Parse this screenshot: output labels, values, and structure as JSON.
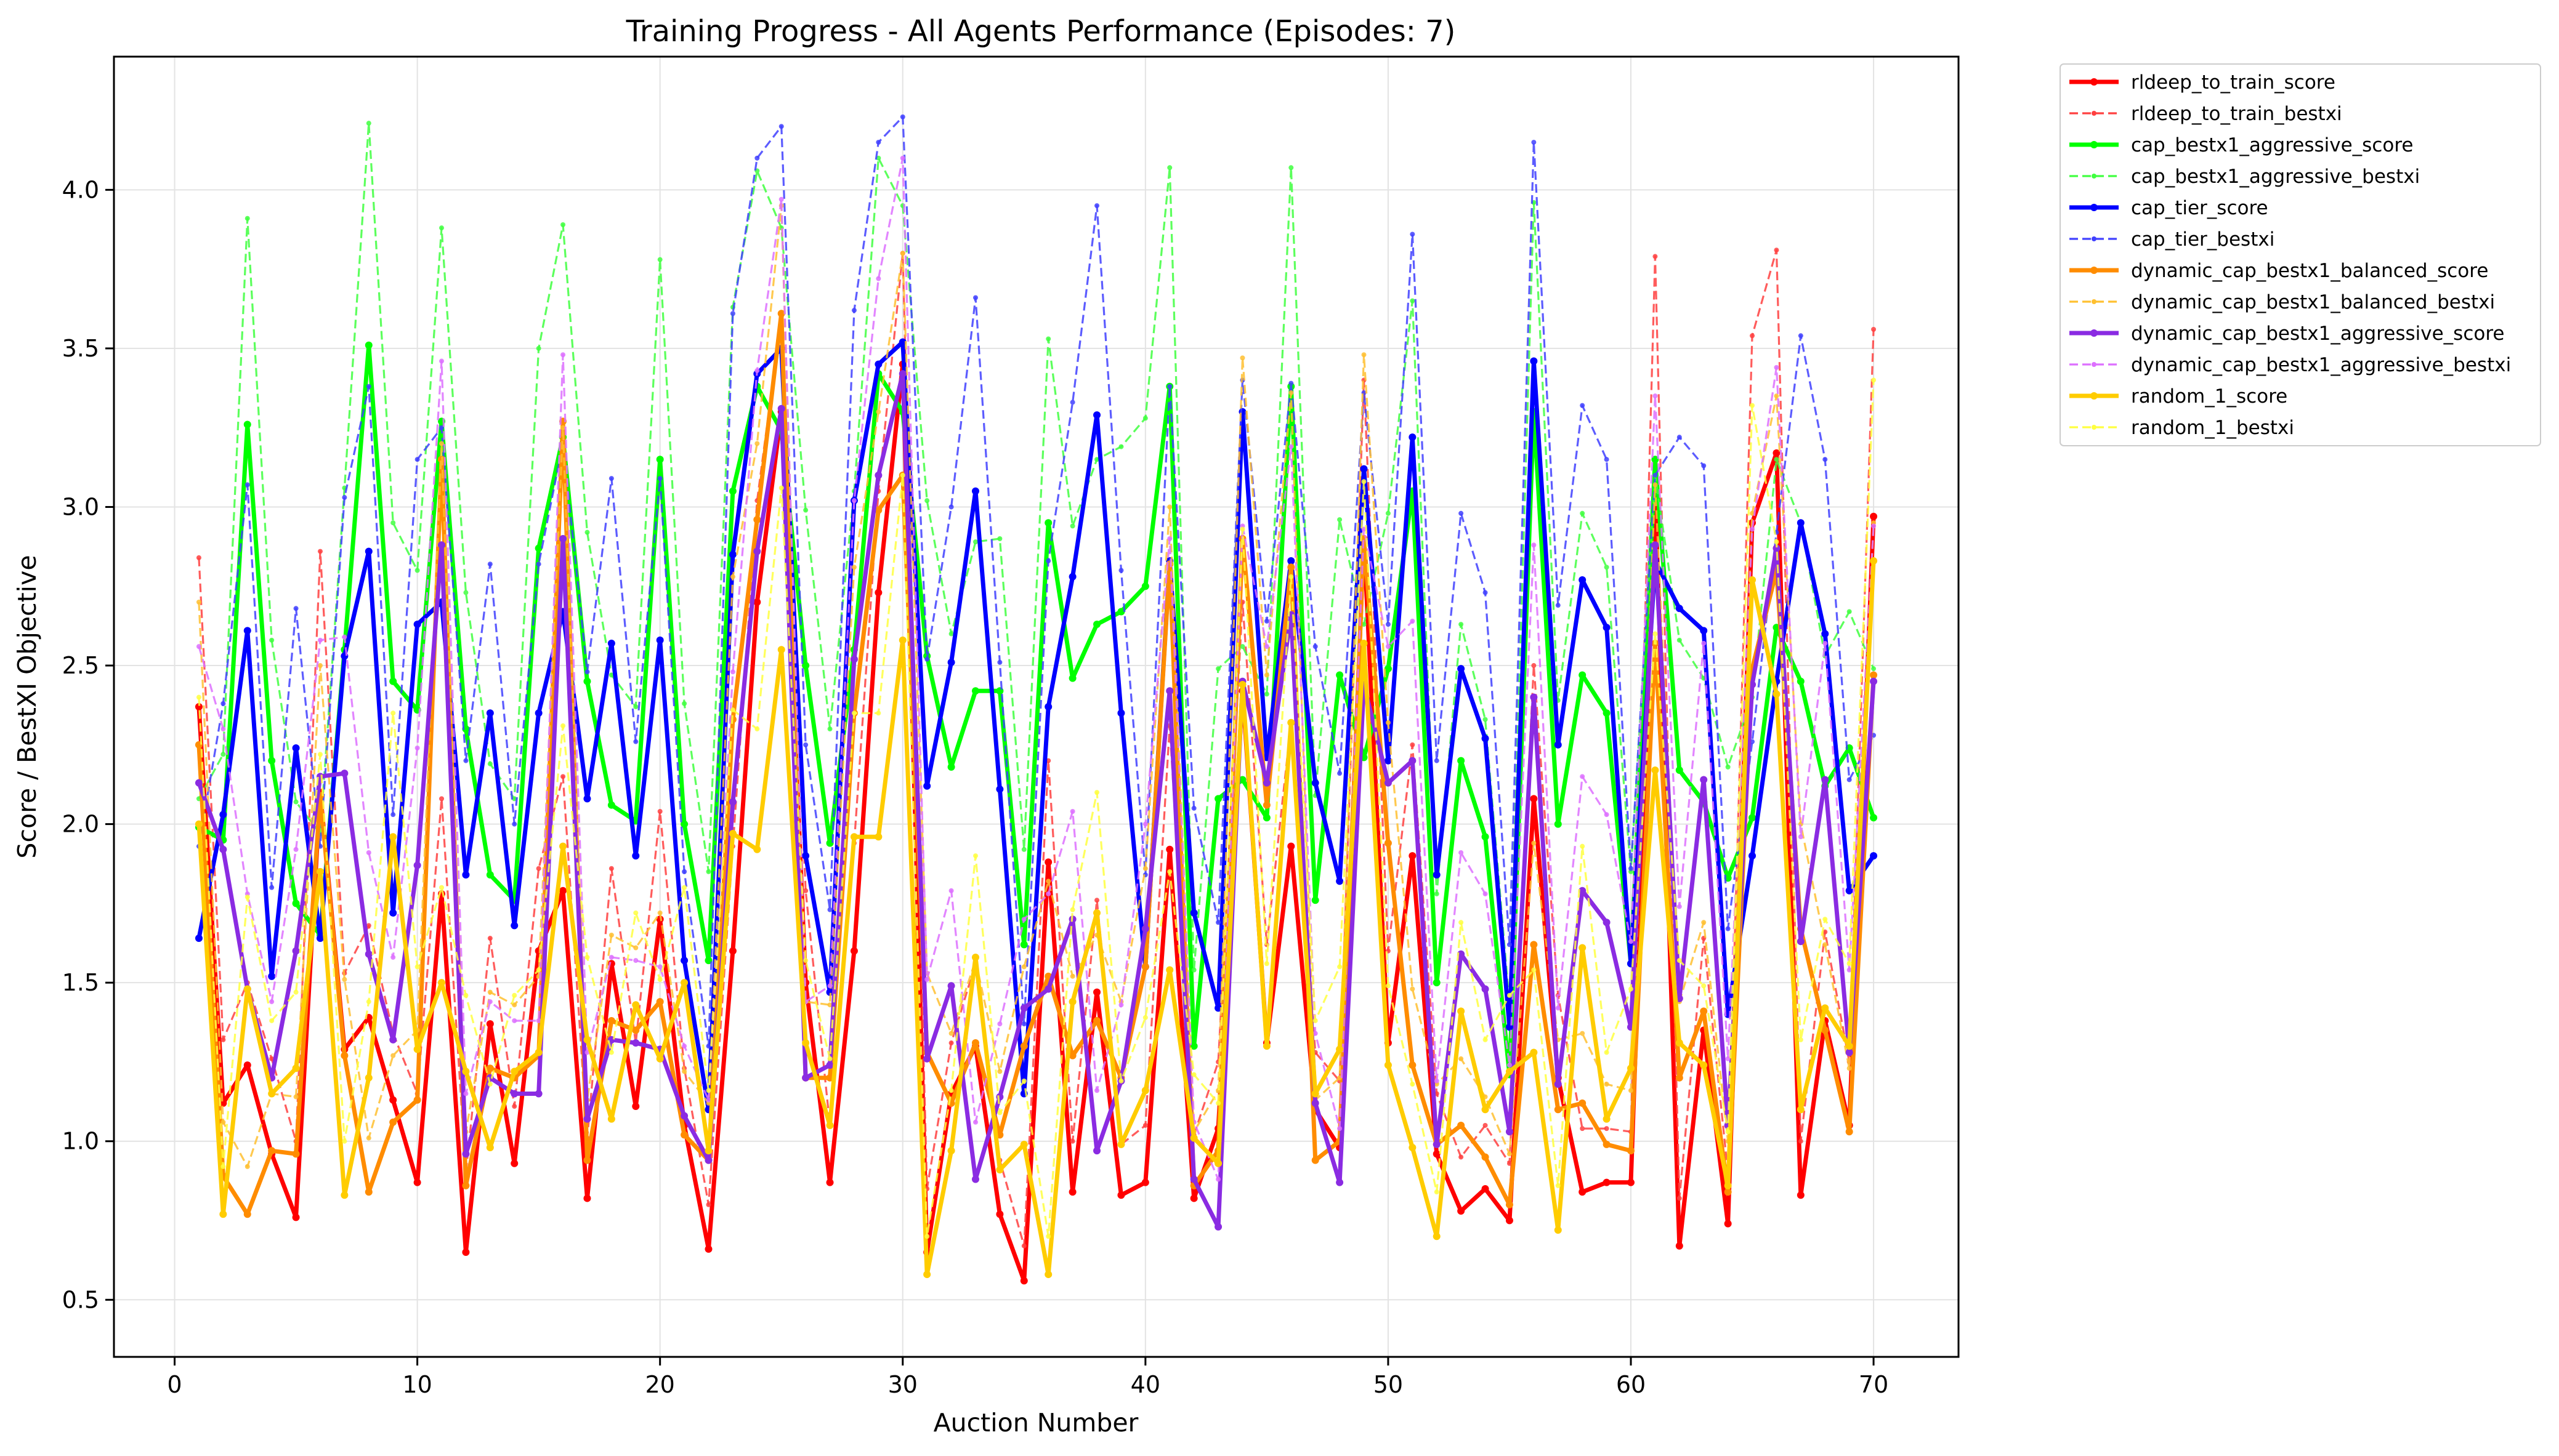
{
  "chart_data": {
    "type": "line",
    "title": "Training Progress - All Agents Performance (Episodes: 7)",
    "xlabel": "Auction Number",
    "ylabel": "Score / BestXI Objective",
    "xlim": [
      -2.5,
      73.5
    ],
    "ylim": [
      0.32,
      4.42
    ],
    "x_ticks": [
      0,
      10,
      20,
      30,
      40,
      50,
      60,
      70
    ],
    "y_ticks": [
      0.5,
      1.0,
      1.5,
      2.0,
      2.5,
      3.0,
      3.5,
      4.0
    ],
    "grid": true,
    "legend_position": "outside-upper-right",
    "x": [
      1,
      2,
      3,
      4,
      5,
      6,
      7,
      8,
      9,
      10,
      11,
      12,
      13,
      14,
      15,
      16,
      17,
      18,
      19,
      20,
      21,
      22,
      23,
      24,
      25,
      26,
      27,
      28,
      29,
      30,
      31,
      32,
      33,
      34,
      35,
      36,
      37,
      38,
      39,
      40,
      41,
      42,
      43,
      44,
      45,
      46,
      47,
      48,
      49,
      50,
      51,
      52,
      53,
      54,
      55,
      56,
      57,
      58,
      59,
      60,
      61,
      62,
      63,
      64,
      65,
      66,
      67,
      68,
      69,
      70
    ],
    "series": [
      {
        "name": "rldeep_to_train_score",
        "color": "#ff0000",
        "style": "solid",
        "values": [
          2.37,
          1.12,
          1.24,
          0.96,
          0.76,
          2.1,
          1.29,
          1.39,
          1.13,
          0.87,
          1.78,
          0.65,
          1.37,
          0.93,
          1.6,
          1.79,
          0.82,
          1.56,
          1.11,
          1.7,
          1.05,
          0.66,
          1.6,
          2.7,
          3.3,
          1.5,
          0.87,
          1.6,
          2.73,
          3.45,
          0.65,
          1.15,
          1.3,
          0.77,
          0.56,
          1.88,
          0.84,
          1.47,
          0.83,
          0.87,
          1.92,
          0.82,
          1.04,
          2.42,
          1.31,
          1.93,
          1.1,
          0.98,
          2.9,
          1.31,
          1.9,
          0.96,
          0.78,
          0.85,
          0.75,
          2.08,
          1.2,
          0.84,
          0.87,
          0.87,
          3.05,
          0.67,
          1.35,
          0.74,
          2.95,
          3.17,
          0.83,
          1.38,
          1.05,
          2.97
        ]
      },
      {
        "name": "rldeep_to_train_bestxi",
        "color": "#ff4040",
        "style": "dashed",
        "values": [
          2.84,
          1.32,
          1.5,
          1.26,
          1.0,
          2.86,
          1.53,
          1.68,
          1.34,
          1.15,
          2.08,
          0.9,
          1.64,
          1.11,
          1.86,
          2.15,
          1.01,
          1.86,
          1.31,
          2.04,
          1.23,
          0.8,
          1.93,
          3.02,
          3.6,
          1.79,
          1.05,
          1.94,
          3.05,
          3.8,
          0.85,
          1.31,
          1.56,
          0.94,
          0.67,
          2.2,
          1.0,
          1.76,
          0.99,
          1.05,
          2.31,
          1.02,
          1.25,
          2.7,
          1.62,
          2.32,
          1.28,
          1.19,
          3.4,
          1.6,
          2.25,
          1.15,
          0.95,
          1.05,
          0.93,
          2.5,
          1.46,
          1.04,
          1.04,
          1.03,
          3.79,
          0.82,
          1.64,
          0.9,
          3.54,
          3.81,
          1.0,
          1.66,
          1.25,
          3.56
        ]
      },
      {
        "name": "cap_bestx1_aggressive_score",
        "color": "#00ff00",
        "style": "solid",
        "values": [
          1.99,
          1.95,
          3.26,
          2.2,
          1.75,
          1.65,
          2.55,
          3.51,
          2.45,
          2.36,
          3.27,
          2.3,
          1.84,
          1.76,
          2.87,
          3.22,
          2.45,
          2.06,
          2.01,
          3.15,
          2.0,
          1.57,
          3.05,
          3.38,
          3.24,
          2.5,
          1.94,
          2.55,
          3.42,
          3.3,
          2.53,
          2.18,
          2.42,
          2.42,
          1.62,
          2.95,
          2.46,
          2.63,
          2.67,
          2.75,
          3.38,
          1.3,
          2.08,
          2.14,
          2.02,
          3.38,
          1.76,
          2.47,
          2.21,
          2.49,
          3.05,
          1.5,
          2.2,
          1.96,
          1.21,
          3.3,
          2.0,
          2.47,
          2.35,
          1.56,
          3.15,
          2.17,
          2.07,
          1.83,
          2.02,
          2.62,
          2.45,
          2.12,
          2.24,
          2.02
        ]
      },
      {
        "name": "cap_bestx1_aggressive_bestxi",
        "color": "#40ff40",
        "style": "dashed",
        "values": [
          2.08,
          2.22,
          3.91,
          2.58,
          2.07,
          1.97,
          3.06,
          4.21,
          2.95,
          2.8,
          3.88,
          2.73,
          2.19,
          2.08,
          3.5,
          3.89,
          2.92,
          2.47,
          2.37,
          3.78,
          2.38,
          1.85,
          3.63,
          4.06,
          3.88,
          2.99,
          2.3,
          3.05,
          4.1,
          3.95,
          3.02,
          2.6,
          2.89,
          2.9,
          1.92,
          3.53,
          2.94,
          3.15,
          3.19,
          3.28,
          4.07,
          1.54,
          2.49,
          2.56,
          2.41,
          4.07,
          2.09,
          2.96,
          2.63,
          2.98,
          3.65,
          1.78,
          2.63,
          2.33,
          1.43,
          3.96,
          2.39,
          2.98,
          2.81,
          1.85,
          3.1,
          2.58,
          2.46,
          2.18,
          2.4,
          3.15,
          2.95,
          2.53,
          2.67,
          2.49
        ]
      },
      {
        "name": "cap_tier_score",
        "color": "#0000ff",
        "style": "solid",
        "values": [
          1.64,
          2.03,
          2.61,
          1.52,
          2.24,
          1.64,
          2.53,
          2.86,
          1.72,
          2.63,
          2.7,
          1.84,
          2.35,
          1.68,
          2.35,
          2.67,
          2.08,
          2.57,
          1.9,
          2.58,
          1.57,
          1.1,
          2.85,
          3.42,
          3.5,
          1.9,
          1.47,
          3.02,
          3.45,
          3.52,
          2.12,
          2.51,
          3.05,
          2.11,
          1.15,
          2.37,
          2.78,
          3.29,
          2.35,
          1.55,
          2.83,
          1.72,
          1.42,
          3.3,
          2.21,
          2.83,
          2.13,
          1.82,
          3.12,
          2.2,
          3.22,
          1.84,
          2.49,
          2.27,
          1.36,
          3.46,
          2.25,
          2.77,
          2.62,
          1.56,
          2.83,
          2.68,
          2.61,
          1.4,
          1.9,
          2.45,
          2.95,
          2.6,
          1.79,
          1.9
        ]
      },
      {
        "name": "cap_tier_bestxi",
        "color": "#4040ff",
        "style": "dashed",
        "values": [
          1.93,
          2.38,
          3.07,
          1.8,
          2.68,
          1.93,
          3.03,
          3.38,
          2.03,
          3.15,
          3.25,
          2.2,
          2.82,
          2.0,
          2.82,
          3.2,
          2.48,
          3.09,
          2.26,
          3.09,
          1.85,
          1.3,
          3.61,
          4.1,
          4.2,
          2.25,
          1.73,
          3.62,
          4.15,
          4.23,
          2.52,
          3.0,
          3.66,
          2.51,
          1.37,
          2.83,
          3.33,
          3.95,
          2.8,
          1.84,
          3.38,
          2.05,
          1.69,
          3.4,
          2.64,
          3.39,
          2.56,
          2.16,
          3.36,
          2.63,
          3.86,
          2.2,
          2.98,
          2.73,
          1.62,
          4.15,
          2.69,
          3.32,
          3.15,
          1.86,
          3.1,
          3.22,
          3.13,
          1.67,
          2.26,
          2.92,
          3.54,
          3.15,
          2.14,
          2.28
        ]
      },
      {
        "name": "dynamic_cap_bestx1_balanced_score",
        "color": "#ff8c00",
        "style": "solid",
        "values": [
          2.25,
          0.89,
          0.77,
          0.97,
          0.96,
          2.09,
          1.27,
          0.84,
          1.06,
          1.13,
          3.15,
          0.86,
          1.23,
          1.2,
          1.27,
          3.27,
          0.94,
          1.38,
          1.35,
          1.44,
          1.02,
          0.94,
          2.33,
          2.96,
          3.61,
          1.2,
          1.2,
          2.35,
          2.99,
          3.1,
          1.28,
          1.12,
          1.31,
          1.02,
          1.3,
          1.52,
          1.27,
          1.38,
          1.2,
          1.55,
          2.82,
          0.86,
          0.97,
          2.9,
          2.06,
          2.81,
          0.94,
          1.0,
          2.9,
          1.94,
          1.24,
          0.99,
          1.05,
          0.95,
          0.8,
          1.62,
          1.1,
          1.12,
          0.99,
          0.97,
          2.57,
          1.2,
          1.41,
          0.84,
          2.49,
          2.8,
          1.67,
          1.35,
          1.03,
          2.47
        ]
      },
      {
        "name": "dynamic_cap_bestx1_balanced_bestxi",
        "color": "#ffc030",
        "style": "dashed",
        "values": [
          2.7,
          1.06,
          0.92,
          1.15,
          1.14,
          2.5,
          1.51,
          1.01,
          1.27,
          1.35,
          3.2,
          1.03,
          1.47,
          1.43,
          1.52,
          3.25,
          1.13,
          1.65,
          1.61,
          1.72,
          1.22,
          1.12,
          2.78,
          3.2,
          3.95,
          1.44,
          1.43,
          2.81,
          3.3,
          3.8,
          1.53,
          1.34,
          1.57,
          1.22,
          1.55,
          1.82,
          1.52,
          1.65,
          1.44,
          1.86,
          3.0,
          1.03,
          1.16,
          3.47,
          2.47,
          3.36,
          1.13,
          1.2,
          3.48,
          2.32,
          1.48,
          1.18,
          1.26,
          1.14,
          0.96,
          1.94,
          1.32,
          1.34,
          1.18,
          1.16,
          3.07,
          1.44,
          1.69,
          1.0,
          2.98,
          3.35,
          2.0,
          1.62,
          1.23,
          2.95
        ]
      },
      {
        "name": "dynamic_cap_bestx1_aggressive_score",
        "color": "#8a2be2",
        "style": "solid",
        "values": [
          2.13,
          1.92,
          1.48,
          1.2,
          1.6,
          2.15,
          2.16,
          1.59,
          1.32,
          1.87,
          2.88,
          0.96,
          1.2,
          1.15,
          1.15,
          2.9,
          1.07,
          1.32,
          1.31,
          1.29,
          1.08,
          0.94,
          2.07,
          2.86,
          3.31,
          1.2,
          1.24,
          2.52,
          3.1,
          3.42,
          1.26,
          1.49,
          0.88,
          1.14,
          1.42,
          1.48,
          1.7,
          0.97,
          1.19,
          1.67,
          2.42,
          0.88,
          0.73,
          2.45,
          2.13,
          2.66,
          1.12,
          0.87,
          2.44,
          2.13,
          2.2,
          0.99,
          1.59,
          1.48,
          1.03,
          2.4,
          1.18,
          1.79,
          1.69,
          1.36,
          2.88,
          1.45,
          2.14,
          1.05,
          2.44,
          2.87,
          1.63,
          2.14,
          1.28,
          2.45
        ]
      },
      {
        "name": "dynamic_cap_bestx1_aggressive_bestxi",
        "color": "#dd70ff",
        "style": "dashed",
        "values": [
          2.56,
          2.3,
          1.78,
          1.44,
          1.92,
          2.58,
          2.59,
          1.91,
          1.58,
          2.24,
          3.46,
          1.15,
          1.44,
          1.38,
          1.38,
          3.48,
          1.28,
          1.58,
          1.57,
          1.55,
          1.3,
          1.13,
          2.48,
          3.43,
          3.97,
          1.44,
          1.49,
          3.02,
          3.72,
          4.1,
          1.51,
          1.79,
          1.06,
          1.37,
          1.7,
          1.78,
          2.04,
          1.16,
          1.43,
          2.0,
          2.9,
          1.06,
          0.88,
          2.94,
          2.56,
          3.19,
          1.34,
          1.04,
          2.93,
          2.56,
          2.64,
          1.19,
          1.91,
          1.78,
          1.24,
          2.88,
          1.42,
          2.15,
          2.03,
          1.63,
          3.35,
          1.74,
          2.57,
          1.26,
          2.93,
          3.44,
          1.96,
          2.57,
          1.54,
          2.94
        ]
      },
      {
        "name": "random_1_score",
        "color": "#ffcc00",
        "style": "solid",
        "values": [
          2.0,
          0.77,
          1.48,
          1.15,
          1.23,
          1.85,
          0.83,
          1.2,
          1.96,
          1.29,
          1.5,
          1.22,
          0.98,
          1.22,
          1.28,
          1.93,
          1.32,
          1.07,
          1.43,
          1.26,
          1.5,
          0.97,
          1.97,
          1.92,
          2.55,
          1.31,
          1.05,
          1.96,
          1.96,
          2.58,
          0.58,
          0.97,
          1.58,
          0.91,
          0.99,
          0.58,
          1.44,
          1.72,
          0.99,
          1.16,
          1.54,
          1.01,
          0.93,
          2.44,
          1.3,
          2.32,
          1.15,
          1.29,
          2.57,
          1.24,
          0.98,
          0.7,
          1.41,
          1.1,
          1.22,
          1.28,
          0.72,
          1.61,
          1.07,
          1.23,
          2.17,
          1.31,
          1.24,
          0.86,
          2.77,
          2.41,
          1.1,
          1.42,
          1.3,
          2.83
        ]
      },
      {
        "name": "random_1_bestxi",
        "color": "#ffff40",
        "style": "dashed",
        "values": [
          2.4,
          0.92,
          1.77,
          1.38,
          1.47,
          2.22,
          1.0,
          1.44,
          2.35,
          1.55,
          1.8,
          1.46,
          1.18,
          1.46,
          1.54,
          2.31,
          1.58,
          1.28,
          1.72,
          1.51,
          1.8,
          1.16,
          2.36,
          2.3,
          3.06,
          1.57,
          1.26,
          2.35,
          2.35,
          3.1,
          0.7,
          1.16,
          1.9,
          1.09,
          1.19,
          0.7,
          1.73,
          2.1,
          1.19,
          1.39,
          1.85,
          1.21,
          1.12,
          2.93,
          1.56,
          2.78,
          1.38,
          1.55,
          3.08,
          1.49,
          1.18,
          0.84,
          1.69,
          1.32,
          1.46,
          1.54,
          0.86,
          1.93,
          1.28,
          1.48,
          2.6,
          1.57,
          1.49,
          1.03,
          3.32,
          2.89,
          1.32,
          1.7,
          1.56,
          3.4
        ]
      }
    ]
  }
}
